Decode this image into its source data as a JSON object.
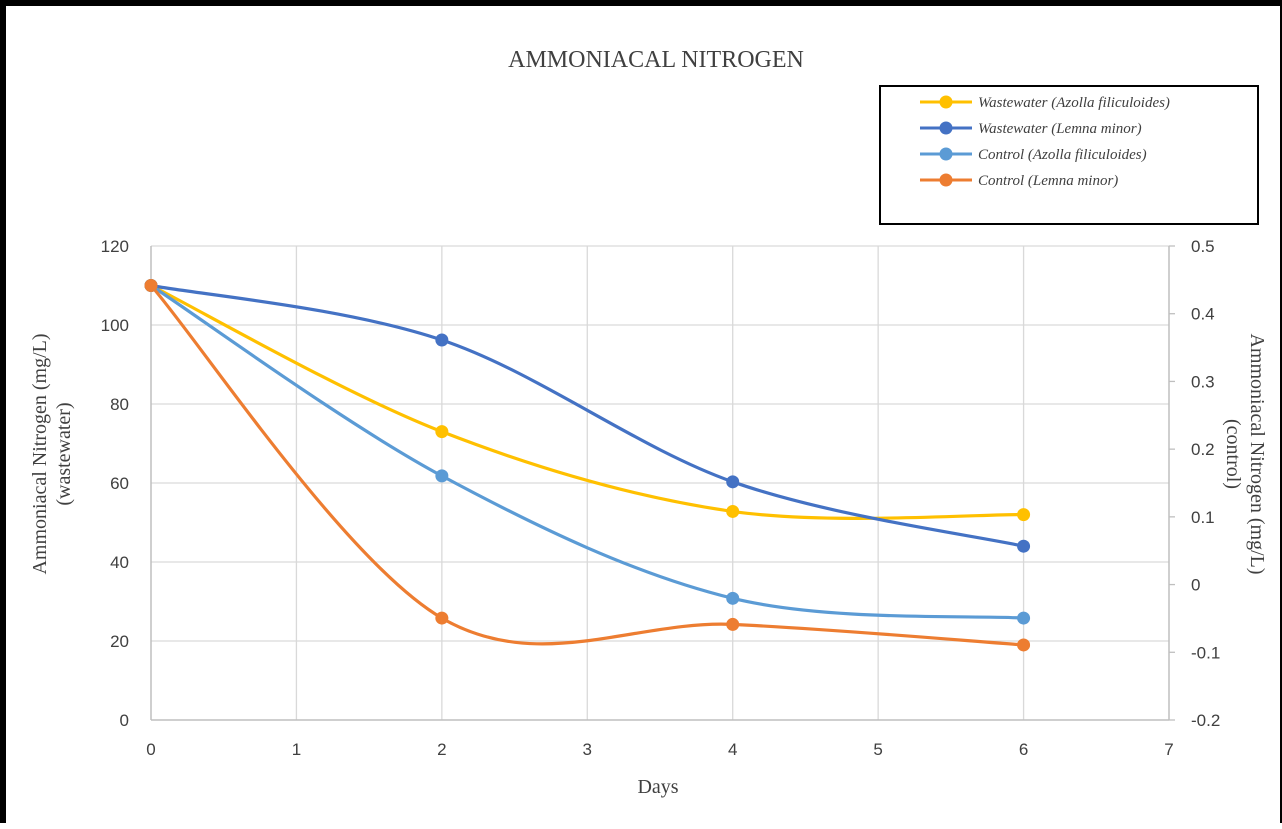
{
  "chart_data": {
    "type": "line",
    "title": "AMMONIACAL NITROGEN",
    "xlabel": "Days",
    "ylabel_left_line1": "Ammoniacal Nitrogen (mg/L)",
    "ylabel_left_line2": "(wastewater)",
    "ylabel_right_line1": "Ammoniacal Nitrogen (mg/L)",
    "ylabel_right_line2": "(control)",
    "xlim": [
      0,
      7
    ],
    "ylim_left": [
      0,
      120
    ],
    "ylim_right": [
      -0.2,
      0.5
    ],
    "x_ticks": [
      "0",
      "1",
      "2",
      "3",
      "4",
      "5",
      "6",
      "7"
    ],
    "y_left_ticks": [
      "0",
      "20",
      "40",
      "60",
      "80",
      "100",
      "120"
    ],
    "y_right_ticks": [
      "-0.2",
      "-0.1",
      "0",
      "0.1",
      "0.2",
      "0.3",
      "0.4",
      "0.5"
    ],
    "grid": true,
    "legend_position": "top-right",
    "x": [
      0,
      2,
      4,
      6
    ],
    "series": [
      {
        "name": "Wastewater (Azolla filiculoides)",
        "axis": "left",
        "color": "#FFC000",
        "values": [
          110,
          73,
          52.8,
          52
        ]
      },
      {
        "name": "Wastewater (Lemna minor)",
        "axis": "left",
        "color": "#4472C4",
        "values": [
          110,
          96.2,
          60.3,
          44
        ]
      },
      {
        "name": "Control (Azolla filiculoides)",
        "axis": "left",
        "color": "#5B9BD5",
        "values": [
          110,
          61.8,
          30.8,
          25.8
        ]
      },
      {
        "name": "Control (Lemna minor)",
        "axis": "left",
        "color": "#ED7D31",
        "values": [
          110,
          25.8,
          24.2,
          19
        ]
      }
    ]
  }
}
